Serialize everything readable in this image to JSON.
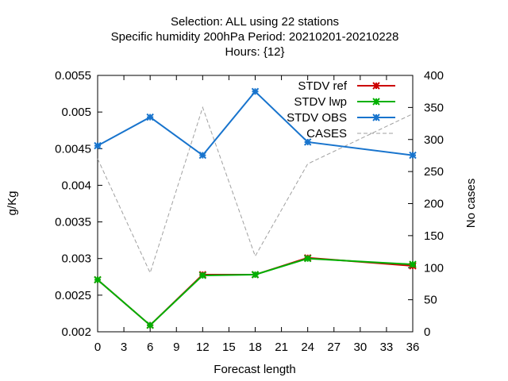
{
  "chart_data": {
    "type": "line",
    "title_lines": [
      "Selection: ALL using    22 stations",
      "Specific humidity 200hPa   Period: 20210201-20210228",
      "Hours: {12}"
    ],
    "xlabel": "Forecast length",
    "ylabel": "g/Kg",
    "y2label": "No cases",
    "xlim": [
      0,
      36
    ],
    "ylim": [
      0.002,
      0.0055
    ],
    "y2lim": [
      0,
      400
    ],
    "xticks": [
      0,
      3,
      6,
      9,
      12,
      15,
      18,
      21,
      24,
      27,
      30,
      33,
      36
    ],
    "yticks": [
      0.002,
      0.0025,
      0.003,
      0.0035,
      0.004,
      0.0045,
      0.005,
      0.0055
    ],
    "ytick_labels": [
      "0.002",
      "0.0025",
      "0.003",
      "0.0035",
      "0.004",
      "0.0045",
      "0.005",
      "0.0055"
    ],
    "y2ticks": [
      0,
      50,
      100,
      150,
      200,
      250,
      300,
      350,
      400
    ],
    "grid": false,
    "legend_position": "top-right",
    "x": [
      0,
      6,
      12,
      18,
      24,
      36
    ],
    "series": [
      {
        "name": "STDV ref",
        "axis": "y",
        "color": "#cc0000",
        "marker": "x",
        "values": [
          0.00271,
          0.00209,
          0.00278,
          0.00278,
          0.00301,
          0.0029
        ]
      },
      {
        "name": "STDV lwp",
        "axis": "y",
        "color": "#00b000",
        "marker": "x",
        "values": [
          0.00271,
          0.00209,
          0.00277,
          0.00278,
          0.003,
          0.00292
        ]
      },
      {
        "name": "STDV OBS",
        "axis": "y",
        "color": "#1874cd",
        "marker": "x",
        "values": [
          0.00454,
          0.00493,
          0.00441,
          0.00528,
          0.00459,
          0.00441
        ]
      },
      {
        "name": "CASES",
        "axis": "y2",
        "color": "#a0a0a0",
        "marker": "none",
        "dashed": true,
        "values": [
          270,
          92,
          350,
          118,
          262,
          340
        ]
      }
    ]
  }
}
